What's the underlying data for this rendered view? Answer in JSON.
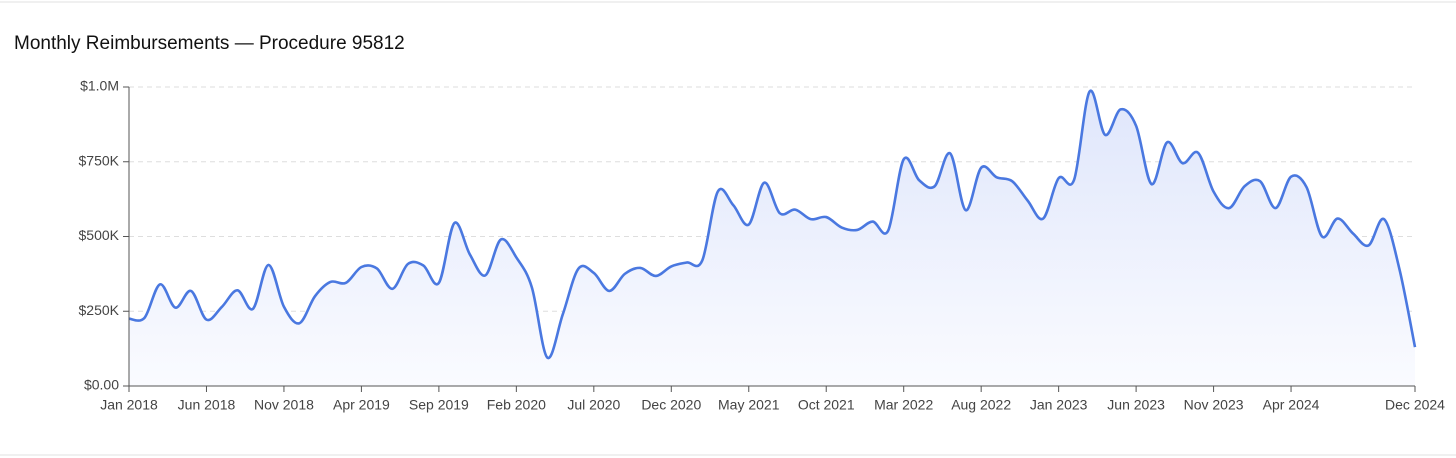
{
  "chart_data": {
    "type": "area",
    "title": "Monthly Reimbursements — Procedure 95812",
    "categories": [
      "Jan 2018",
      null,
      null,
      null,
      null,
      "Jun 2018",
      null,
      null,
      null,
      null,
      "Nov 2018",
      null,
      null,
      null,
      null,
      "Apr 2019",
      null,
      null,
      null,
      null,
      "Sep 2019",
      null,
      null,
      null,
      null,
      "Feb 2020",
      null,
      null,
      null,
      null,
      "Jul 2020",
      null,
      null,
      null,
      null,
      "Dec 2020",
      null,
      null,
      null,
      null,
      "May 2021",
      null,
      null,
      null,
      null,
      "Oct 2021",
      null,
      null,
      null,
      null,
      "Mar 2022",
      null,
      null,
      null,
      null,
      "Aug 2022",
      null,
      null,
      null,
      null,
      "Jan 2023",
      null,
      null,
      null,
      null,
      "Jun 2023",
      null,
      null,
      null,
      null,
      "Nov 2023",
      null,
      null,
      null,
      null,
      "Apr 2024",
      null,
      null,
      null,
      null,
      null,
      null,
      null,
      "Dec 2024"
    ],
    "values": [
      225000,
      228000,
      340000,
      262000,
      318000,
      222000,
      265000,
      320000,
      258000,
      405000,
      265000,
      210000,
      300000,
      348000,
      345000,
      398000,
      393000,
      325000,
      408000,
      403000,
      345000,
      545000,
      440000,
      370000,
      490000,
      430000,
      330000,
      95000,
      240000,
      392000,
      378000,
      318000,
      375000,
      395000,
      368000,
      400000,
      413000,
      420000,
      650000,
      605000,
      540000,
      680000,
      578000,
      590000,
      558000,
      565000,
      530000,
      522000,
      550000,
      520000,
      758000,
      688000,
      668000,
      778000,
      588000,
      730000,
      698000,
      685000,
      620000,
      560000,
      695000,
      690000,
      985000,
      840000,
      925000,
      870000,
      675000,
      815000,
      745000,
      780000,
      650000,
      595000,
      668000,
      685000,
      595000,
      700000,
      665000,
      500000,
      560000,
      510000,
      470000,
      558000,
      390000,
      130000
    ],
    "color": "#4a78e0",
    "ylim": [
      0,
      1000000
    ],
    "yticks": [
      {
        "value": 0,
        "label": "$0.00"
      },
      {
        "value": 250000,
        "label": "$250K"
      },
      {
        "value": 500000,
        "label": "$500K"
      },
      {
        "value": 750000,
        "label": "$750K"
      },
      {
        "value": 1000000,
        "label": "$1.0M"
      }
    ],
    "grid": true
  }
}
